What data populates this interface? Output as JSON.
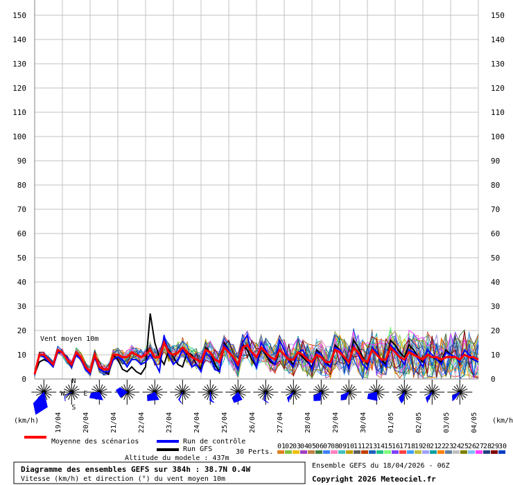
{
  "chart_data": {
    "type": "line",
    "title": "Diagramme des ensembles GEFS sur 384h : 38.7N 0.4W",
    "subtitle": "Vitesse (km/h) et direction (°) du vent moyen 10m",
    "altitude_label": "Altitude du modele : 437m",
    "ensemble_label": "Ensemble GEFS du 18/04/2026 - 06Z",
    "copyright": "Copyright 2026 Meteociel.fr",
    "plot_label": "Vent moyen 10m",
    "ylabel_left": "(km/h)",
    "ylabel_right": "(km/h)",
    "ylim": [
      0,
      155
    ],
    "yticks": [
      0,
      10,
      20,
      30,
      40,
      50,
      60,
      70,
      80,
      90,
      100,
      110,
      120,
      130,
      140,
      150
    ],
    "grid": true,
    "date_labels": [
      "19/04",
      "20/04",
      "21/04",
      "22/04",
      "23/04",
      "24/04",
      "25/04",
      "26/04",
      "27/04",
      "28/04",
      "29/04",
      "30/04",
      "01/05",
      "02/05",
      "03/05",
      "04/05"
    ],
    "x_hours_range": [
      0,
      384
    ],
    "x_step_hours": 6,
    "legend": {
      "mean": "Moyenne des scénarios",
      "control": "Run de contrôle",
      "gfs": "Run GFS",
      "perts": "30 Perts.",
      "pert_numbers": [
        "01",
        "02",
        "03",
        "04",
        "05",
        "06",
        "07",
        "08",
        "09",
        "10",
        "11",
        "12",
        "13",
        "14",
        "15",
        "16",
        "17",
        "18",
        "19",
        "20",
        "21",
        "22",
        "23",
        "24",
        "25",
        "26",
        "27",
        "28",
        "29",
        "30"
      ]
    },
    "compass": {
      "n": "N",
      "s": "S",
      "w": "W",
      "e": "E"
    },
    "colors": {
      "mean": "#ff0000",
      "control": "#0000ff",
      "gfs": "#000000",
      "grid": "#c0c0c0",
      "rose": "#0000ff",
      "pert_colors": [
        "#e08020",
        "#80c040",
        "#f0c000",
        "#a040c0",
        "#c08040",
        "#408040",
        "#4080ff",
        "#ff80c0",
        "#40c0c0",
        "#c0a000",
        "#606060",
        "#c04000",
        "#2060c0",
        "#20c080",
        "#80ff80",
        "#8040ff",
        "#ff4040",
        "#40a0ff",
        "#c0c040",
        "#a0a0ff",
        "#00a0a0",
        "#ff8000",
        "#6080a0",
        "#c0c0c0",
        "#808000",
        "#80c0ff",
        "#ff40ff",
        "#204080",
        "#800000",
        "#0040c0"
      ]
    },
    "series": [
      {
        "name": "Moyenne des scénarios",
        "values": [
          2,
          10,
          10,
          8,
          6,
          12,
          11,
          8,
          6,
          11,
          9,
          5,
          3,
          10,
          5,
          4,
          4,
          10,
          10,
          9,
          9,
          11,
          10,
          9,
          10,
          12,
          9,
          9,
          15,
          11,
          10,
          11,
          13,
          11,
          9,
          8,
          7,
          12,
          11,
          8,
          7,
          13,
          11,
          9,
          6,
          13,
          14,
          11,
          9,
          13,
          11,
          9,
          8,
          12,
          10,
          8,
          8,
          11,
          10,
          8,
          7,
          10,
          9,
          7,
          7,
          12,
          11,
          9,
          7,
          13,
          11,
          8,
          7,
          12,
          10,
          8,
          8,
          13,
          11,
          9,
          8,
          11,
          10,
          9,
          8,
          10,
          9,
          9,
          8,
          9,
          9,
          9,
          8,
          10,
          9,
          9,
          8
        ]
      },
      {
        "name": "Run de contrôle",
        "values": [
          2,
          10,
          9,
          7,
          5,
          11,
          11,
          9,
          5,
          10,
          8,
          4,
          2,
          9,
          4,
          3,
          3,
          8,
          9,
          8,
          5,
          8,
          8,
          6,
          7,
          10,
          7,
          3,
          18,
          10,
          6,
          8,
          12,
          9,
          5,
          6,
          3,
          11,
          9,
          4,
          3,
          14,
          12,
          8,
          4,
          15,
          18,
          10,
          5,
          15,
          12,
          8,
          6,
          16,
          12,
          7,
          5,
          11,
          12,
          8,
          4,
          11,
          10,
          6,
          5,
          13,
          12,
          9,
          4,
          14,
          10,
          6,
          4,
          13,
          11,
          7,
          5,
          14,
          12,
          9,
          6,
          12,
          11,
          8,
          5,
          12,
          10,
          8,
          6,
          11,
          10,
          9,
          7,
          12,
          10,
          8,
          7
        ]
      },
      {
        "name": "Run GFS",
        "values": [
          2,
          7,
          8,
          7,
          6,
          11,
          11,
          8,
          5,
          11,
          9,
          5,
          2,
          10,
          4,
          3,
          2,
          10,
          8,
          4,
          3,
          5,
          3,
          2,
          5,
          27,
          15,
          9,
          6,
          12,
          9,
          6,
          5,
          11,
          10,
          6,
          4,
          13,
          11,
          6,
          3,
          15,
          12,
          8,
          4,
          14,
          12,
          8,
          5,
          13,
          10,
          7,
          6,
          12,
          10,
          8,
          6,
          11,
          9,
          7,
          5,
          12,
          10,
          7,
          5,
          14,
          12,
          8,
          5,
          16,
          13,
          9,
          6,
          13,
          11,
          8,
          6,
          16,
          14,
          11,
          9,
          14,
          12,
          9,
          7,
          10,
          9,
          8,
          7,
          12,
          10,
          9,
          8,
          10,
          9,
          8,
          7
        ]
      }
    ],
    "wind_rose_dirs_deg": [
      200,
      190,
      215,
      260,
      240,
      180,
      280,
      255,
      220,
      175,
      185,
      225,
      160,
      195,
      200,
      175,
      165,
      215,
      205,
      235,
      220,
      210,
      225,
      230,
      235,
      200,
      195,
      210,
      205,
      230,
      220,
      240,
      235,
      215,
      225,
      230,
      245,
      240,
      210,
      225,
      230,
      235,
      240,
      225,
      215,
      230
    ]
  }
}
